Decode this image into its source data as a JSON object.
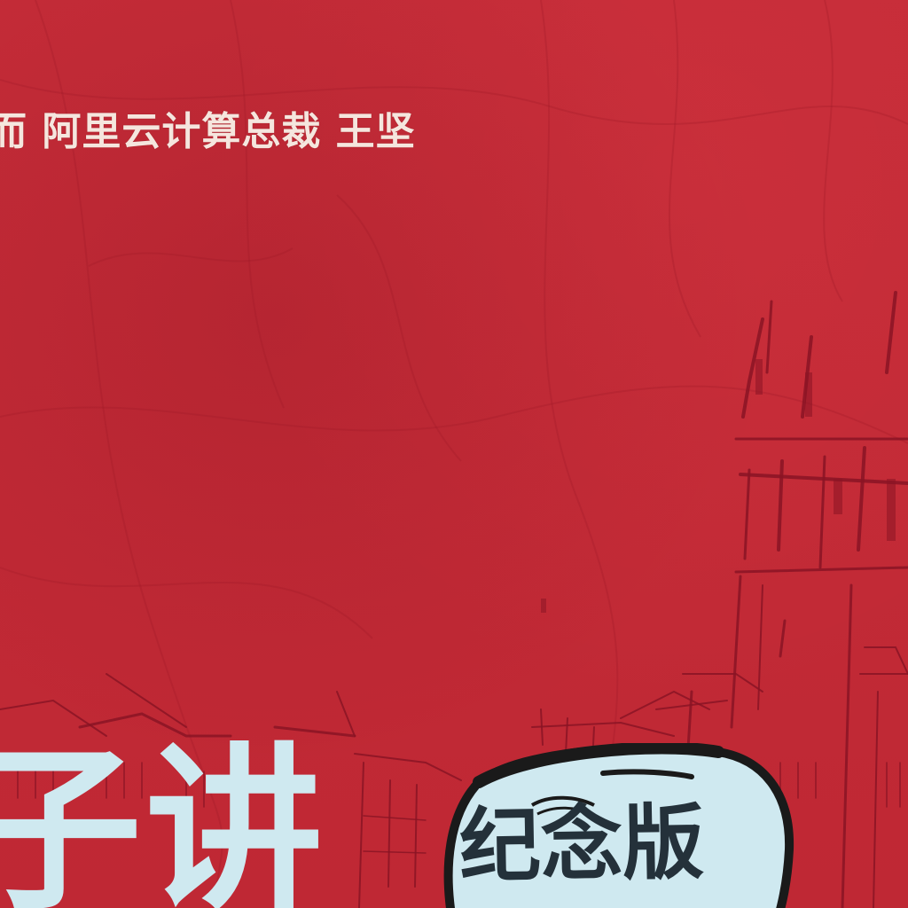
{
  "cover": {
    "blurb": "而 阿里云计算总裁  王坚",
    "title": "子讲",
    "badge": "纪念版"
  },
  "colors": {
    "background": "#c42a35",
    "blurb_text": "#f5e6de",
    "title_text": "#cfe9f0",
    "badge_fill": "#cfe9f0",
    "badge_outline": "#1a1a1a",
    "sketch_lines": "#8a1424"
  }
}
